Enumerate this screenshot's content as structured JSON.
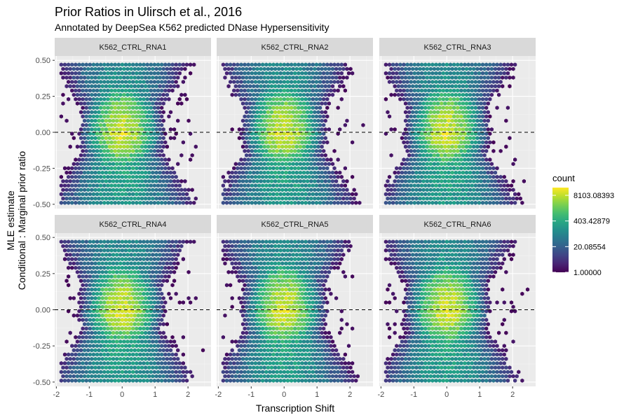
{
  "chart_data": {
    "type": "heatmap",
    "subtype": "hexbin-facets",
    "title": "Prior Ratios in Ulirsch et al., 2016",
    "subtitle": "Annotated by DeepSea K562 predicted DNase Hypersensitivity",
    "xlabel": "Transcription Shift",
    "ylabel_line1": "MLE estimate",
    "ylabel_line2": "Conditional : Marginal prior ratio",
    "xlim": [
      -2.05,
      2.7
    ],
    "ylim": [
      -0.53,
      0.53
    ],
    "x_ticks": [
      -2,
      -1,
      0,
      1,
      2
    ],
    "x_tick_labels": [
      "-2",
      "-1",
      "0",
      "1",
      "2"
    ],
    "y_ticks": [
      -0.5,
      -0.25,
      0,
      0.25,
      0.5
    ],
    "y_tick_labels": [
      "-0.50",
      "-0.25",
      "0.00",
      "0.25",
      "0.50"
    ],
    "reference_line": {
      "y": 0,
      "style": "dashed"
    },
    "grid": true,
    "facets": [
      {
        "label": "K562_CTRL_RNA1"
      },
      {
        "label": "K562_CTRL_RNA2"
      },
      {
        "label": "K562_CTRL_RNA3"
      },
      {
        "label": "K562_CTRL_RNA4"
      },
      {
        "label": "K562_CTRL_RNA5"
      },
      {
        "label": "K562_CTRL_RNA6"
      }
    ],
    "layout": {
      "rows": 2,
      "cols": 3
    },
    "legend": {
      "title": "count",
      "scale": "log",
      "placement": "right",
      "labels": [
        "8103.08393",
        "403.42879",
        "20.08554",
        "1.00000"
      ],
      "label_values": [
        8103.08393,
        403.42879,
        20.08554,
        1.0
      ],
      "range": [
        1,
        20000
      ],
      "colormap": "viridis"
    }
  }
}
